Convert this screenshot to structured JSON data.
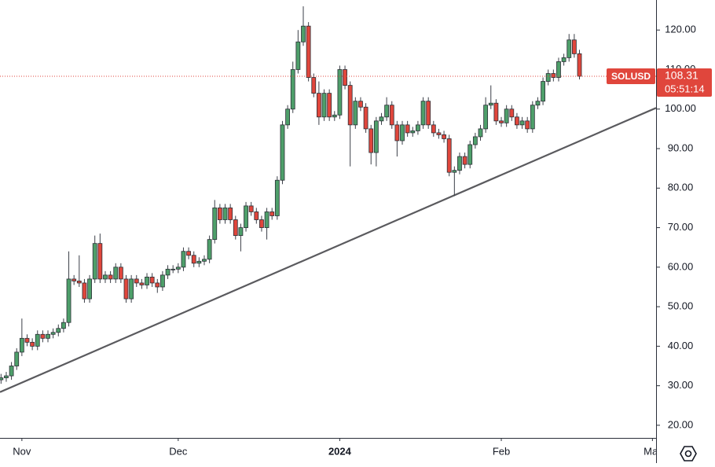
{
  "chart_data": {
    "type": "candlestick",
    "symbol": "SOLUSD",
    "countdown": "05:51:14",
    "up_color": "#4e9f6a",
    "down_color": "#e0463c",
    "trendline": {
      "x": [
        -0.2,
        125.7
      ],
      "values": [
        28.4,
        100.3
      ],
      "color": "#5a5a5e"
    },
    "xlim": [
      -0.2,
      125.7
    ],
    "xticks": [
      {
        "value": 4,
        "label": "Nov"
      },
      {
        "value": 34,
        "label": "Dec"
      },
      {
        "value": 65,
        "label": "2024"
      },
      {
        "value": 96,
        "label": "Feb"
      },
      {
        "value": 125,
        "label": "Mar"
      }
    ],
    "ylim": [
      16.8,
      127.6
    ],
    "yticks": [
      {
        "value": 20,
        "label": "20.00"
      },
      {
        "value": 30,
        "label": "30.00"
      },
      {
        "value": 40,
        "label": "40.00"
      },
      {
        "value": 50,
        "label": "50.00"
      },
      {
        "value": 60,
        "label": "60.00"
      },
      {
        "value": 70,
        "label": "70.00"
      },
      {
        "value": 80,
        "label": "80.00"
      },
      {
        "value": 90,
        "label": "90.00"
      },
      {
        "value": 100,
        "label": "100.00"
      },
      {
        "value": 110,
        "label": "110.00"
      },
      {
        "value": 120,
        "label": "120.00"
      }
    ],
    "open": [
      31.5,
      32,
      32.5,
      35,
      38.5,
      42,
      41,
      40,
      43,
      42,
      43,
      43.5,
      44.5,
      46,
      57,
      56.5,
      56,
      52,
      57,
      66,
      57,
      58,
      57,
      60,
      57,
      52,
      57,
      56,
      55.5,
      57.5,
      56,
      55,
      58,
      59.5,
      59.5,
      60,
      64,
      63,
      61,
      61.5,
      62,
      67,
      75,
      72,
      75,
      72,
      68,
      70,
      75.5,
      74,
      72,
      70,
      74,
      73,
      82,
      96,
      100,
      110,
      117,
      121,
      108,
      104,
      98,
      104,
      98,
      98.5,
      110,
      106,
      96,
      102,
      100.5,
      95,
      89,
      97,
      98,
      101,
      96,
      92,
      96,
      94,
      94.5,
      96,
      102,
      96,
      94,
      93.5,
      92.5,
      84,
      84.5,
      88,
      86,
      91,
      93,
      95,
      101,
      101.5,
      97,
      96.5,
      100,
      98,
      96,
      97,
      95,
      101,
      102,
      107,
      109,
      108,
      112,
      113,
      117.5,
      114
    ],
    "high": [
      33,
      33.5,
      36,
      39.5,
      47,
      43,
      42,
      44,
      44,
      44,
      44.5,
      45.5,
      47,
      64,
      58,
      63,
      57,
      58,
      68,
      68.5,
      59,
      59,
      61,
      61,
      58,
      58,
      58,
      57,
      58.5,
      58.5,
      57,
      59,
      60.5,
      60.5,
      61,
      65,
      65,
      64,
      62.5,
      63,
      68,
      77,
      76,
      76,
      76,
      73,
      71,
      76.5,
      76.5,
      75,
      73,
      75,
      75,
      83,
      97,
      101,
      112,
      120,
      126,
      122,
      109,
      107,
      105,
      105,
      99.5,
      111,
      111,
      107,
      103,
      103,
      101.5,
      96,
      98,
      99,
      103,
      102,
      97,
      97,
      97,
      95.5,
      97,
      103,
      103,
      97,
      95,
      94.5,
      93.5,
      85.5,
      89,
      89,
      92,
      94,
      96,
      103,
      106,
      102.5,
      98,
      101,
      101,
      99,
      98,
      98,
      102,
      103,
      108,
      110,
      110,
      113,
      114,
      119,
      119,
      115
    ],
    "low": [
      30.5,
      31,
      31.5,
      34,
      37.5,
      40,
      39,
      39,
      41,
      41,
      42,
      42.5,
      43.5,
      45,
      55.5,
      55,
      51,
      51,
      56,
      56,
      56,
      56,
      56,
      56,
      51,
      51,
      55,
      54.5,
      54.5,
      55,
      53.5,
      54,
      57,
      58.5,
      58.5,
      59,
      62,
      60,
      60,
      60.5,
      61,
      66,
      71,
      71,
      71,
      67,
      64,
      69,
      73,
      71,
      69,
      67,
      72,
      72,
      81,
      95,
      99,
      109,
      116,
      107,
      103,
      96,
      97,
      97,
      97,
      97.5,
      105,
      85.5,
      95,
      99.5,
      94,
      86,
      85.5,
      96,
      97,
      95,
      88,
      91,
      93,
      93,
      93.5,
      95,
      95,
      93,
      92.5,
      91.5,
      83,
      78,
      83.5,
      85,
      85,
      90,
      92,
      94,
      100,
      96,
      95.5,
      95.5,
      97,
      95,
      95,
      94,
      94,
      100,
      101,
      106,
      107,
      107,
      111,
      112,
      113,
      107.5
    ],
    "close": [
      32,
      32.5,
      35,
      38.5,
      42,
      41,
      40,
      43,
      42,
      43,
      43.5,
      44.5,
      46,
      57,
      56.5,
      56,
      52,
      57,
      66,
      57,
      58,
      57,
      60,
      57,
      52,
      57,
      56,
      55.5,
      57.5,
      56,
      55,
      58,
      59.5,
      59.5,
      60,
      64,
      63,
      61,
      61.5,
      62,
      67,
      75,
      72,
      75,
      72,
      68,
      70,
      75.5,
      74,
      72,
      70,
      74,
      73,
      82,
      96,
      100,
      110,
      117,
      121,
      108,
      104,
      98,
      104,
      98,
      98.5,
      110,
      106,
      96,
      102,
      100.5,
      95,
      89,
      97,
      98,
      101,
      96,
      92,
      96,
      94,
      94.5,
      96,
      102,
      96,
      94,
      93.5,
      92.5,
      84,
      84.5,
      88,
      86,
      91,
      93,
      95,
      101,
      101.5,
      97,
      96.5,
      100,
      98,
      96,
      97,
      95,
      101,
      102,
      107,
      109,
      108,
      112,
      113,
      117.5,
      114,
      108.31
    ]
  }
}
